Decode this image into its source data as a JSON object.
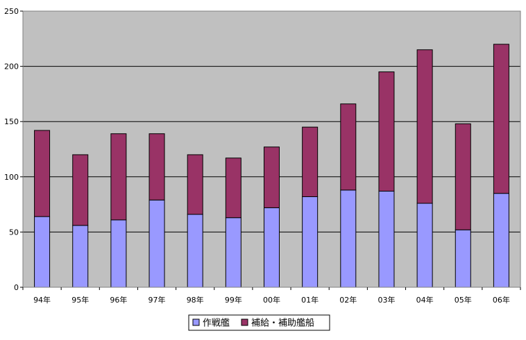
{
  "chart_data": {
    "type": "bar",
    "stacked": true,
    "title": "",
    "xlabel": "",
    "ylabel": "",
    "categories": [
      "94年",
      "95年",
      "96年",
      "97年",
      "98年",
      "99年",
      "00年",
      "01年",
      "02年",
      "03年",
      "04年",
      "05年",
      "06年"
    ],
    "series": [
      {
        "name": "作戦艦",
        "color": "#9999ff",
        "values": [
          64,
          56,
          61,
          79,
          66,
          63,
          72,
          82,
          88,
          87,
          76,
          52,
          85
        ]
      },
      {
        "name": "補給・補助艦船",
        "color": "#993366",
        "values": [
          78,
          64,
          78,
          60,
          54,
          54,
          55,
          63,
          78,
          108,
          139,
          96,
          135
        ]
      }
    ],
    "ylim": [
      0,
      250
    ],
    "yticks": [
      0,
      50,
      100,
      150,
      200,
      250
    ],
    "grid": true,
    "plot_background": "#c0c0c0",
    "legend": {
      "position": "bottom"
    }
  }
}
